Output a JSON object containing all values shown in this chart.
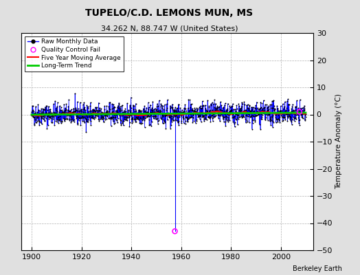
{
  "title": "TUPELO/C.D. LEMONS MUN, MS",
  "subtitle": "34.262 N, 88.747 W (United States)",
  "xlabel_ticks": [
    1900,
    1920,
    1940,
    1960,
    1980,
    2000
  ],
  "ylabel_right": "Temperature Anomaly (°C)",
  "ylim": [
    -50,
    30
  ],
  "xlim": [
    1896,
    2013
  ],
  "yticks": [
    -50,
    -40,
    -30,
    -20,
    -10,
    0,
    10,
    20,
    30
  ],
  "bg_color": "#e0e0e0",
  "plot_bg_color": "#ffffff",
  "attribution": "Berkeley Earth",
  "seed": 42,
  "n_points": 1320,
  "year_start": 1900,
  "year_end": 2010,
  "data_std": 2.0,
  "outlier_year": 1957.5,
  "outlier_value": -43.0,
  "qc_fail_year2": 2007.5,
  "qc_fail_value2": 1.0,
  "trend_slope": 0.004,
  "moving_avg_window": 60
}
